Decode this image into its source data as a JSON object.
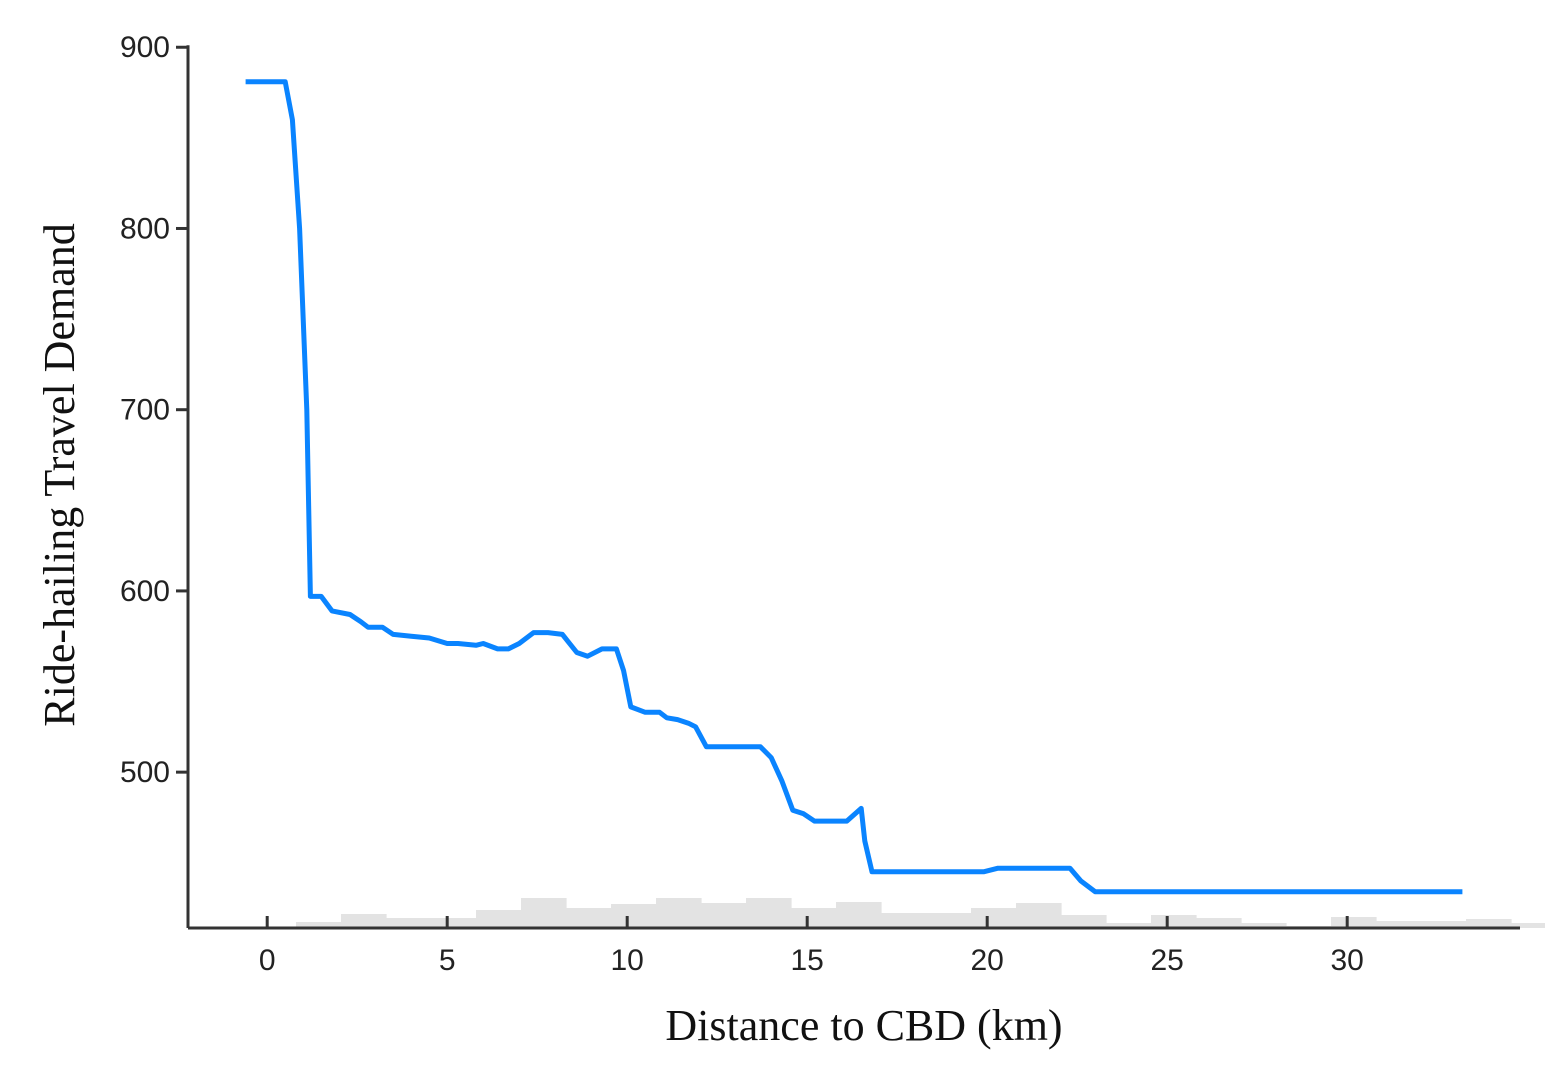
{
  "chart_data": {
    "type": "line",
    "title": "",
    "xlabel": "Distance to CBD (km)",
    "ylabel": "Ride-hailing Travel Demand",
    "xlim": [
      -2.2,
      34.8
    ],
    "ylim": [
      414,
      904
    ],
    "x_ticks": [
      0,
      5,
      10,
      15,
      20,
      25,
      30
    ],
    "y_ticks": [
      500,
      600,
      700,
      800,
      900
    ],
    "grid": false,
    "legend": "none",
    "colors": {
      "line": "#0a84ff",
      "histogram": "#e3e3e3",
      "axis": "#333333"
    },
    "series": [
      {
        "x": [
          -0.6,
          0.5,
          0.7,
          0.9,
          1.1,
          1.2,
          1.5,
          1.8,
          2.3,
          2.6,
          2.8,
          3.2,
          3.5,
          4.0,
          4.5,
          5.0,
          5.3,
          5.8,
          6.0,
          6.4,
          6.7,
          7.0,
          7.4,
          7.8,
          8.2,
          8.4,
          8.6,
          8.9,
          9.3,
          9.7,
          9.9,
          10.1,
          10.5,
          10.9,
          11.1,
          11.4,
          11.7,
          11.9,
          12.2,
          12.8,
          13.4,
          13.7,
          14.0,
          14.3,
          14.6,
          14.9,
          15.2,
          15.6,
          16.1,
          16.5,
          16.6,
          16.8,
          17.2,
          18.0,
          19.0,
          19.9,
          20.3,
          20.8,
          21.5,
          22.2,
          22.3,
          22.6,
          23.0,
          25.0,
          30.0,
          33.2
        ],
        "y": [
          881,
          881,
          860,
          800,
          700,
          597,
          597,
          589,
          587,
          583,
          580,
          580,
          576,
          575,
          574,
          571,
          571,
          570,
          571,
          568,
          568,
          571,
          577,
          577,
          576,
          571,
          566,
          564,
          568,
          568,
          556,
          536,
          533,
          533,
          530,
          529,
          527,
          525,
          514,
          514,
          514,
          514,
          508,
          495,
          479,
          477,
          473,
          473,
          473,
          480,
          462,
          445,
          445,
          445,
          445,
          445,
          447,
          447,
          447,
          447,
          447,
          440,
          434,
          434,
          434,
          434
        ]
      }
    ],
    "histogram": {
      "bin_start": 0.8,
      "bin_width": 0.625,
      "heights": [
        6,
        6,
        14,
        14,
        10,
        10,
        10,
        10,
        18,
        18,
        30,
        30,
        20,
        20,
        24,
        24,
        30,
        30,
        25,
        25,
        30,
        30,
        20,
        20,
        26,
        26,
        15,
        15,
        15,
        15,
        20,
        20,
        25,
        25,
        13,
        13,
        5,
        5,
        13,
        13,
        10,
        10,
        5,
        5,
        2,
        2,
        11,
        11,
        7,
        7,
        7,
        7,
        9,
        9,
        5,
        5,
        3,
        3,
        1,
        1,
        5,
        5,
        1,
        1
      ]
    }
  }
}
